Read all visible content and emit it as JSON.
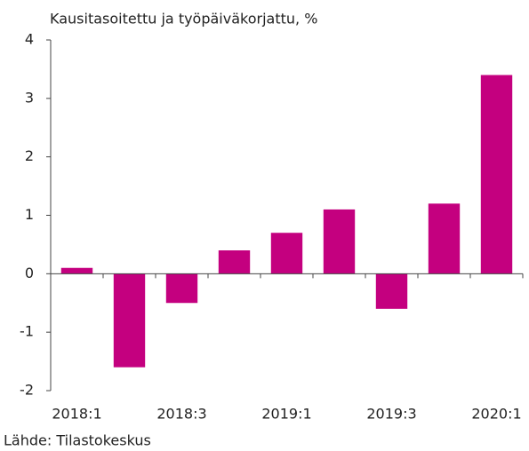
{
  "chart_data": {
    "type": "bar",
    "title": "Kausitasoitettu ja työpäiväkorjattu, %",
    "categories": [
      "2018:1",
      null,
      "2018:3",
      null,
      "2019:1",
      null,
      "2019:3",
      null,
      "2020:1"
    ],
    "values": [
      0.1,
      -1.6,
      -0.5,
      0.4,
      0.7,
      1.1,
      -0.6,
      1.2,
      3.4
    ],
    "color": "#c4007f",
    "ylim": [
      -2,
      4
    ],
    "yticks": [
      -2,
      -1,
      0,
      1,
      2,
      3,
      4
    ],
    "grid": false,
    "source": "Lähde: Tilastokeskus"
  }
}
